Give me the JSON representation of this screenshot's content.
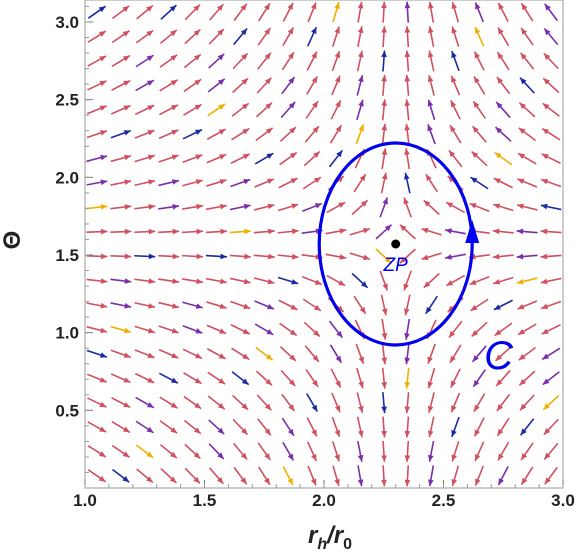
{
  "chart_data": {
    "type": "vector_field",
    "xlabel": "r",
    "xlabel_sub_h": "h",
    "xlabel_slash": "/r",
    "xlabel_sub_0": "0",
    "ylabel": "Θ",
    "xlim": [
      1.0,
      3.0
    ],
    "ylim": [
      0.0,
      3.1416
    ],
    "xticks": [
      "1.0",
      "1.5",
      "2.0",
      "2.5",
      "3.0"
    ],
    "yticks": [
      "0.5",
      "1.0",
      "1.5",
      "2.0",
      "2.5",
      "3.0"
    ],
    "zero_point": {
      "label": "ZP",
      "x": 2.3,
      "y": 1.5708
    },
    "contour": {
      "label": "C",
      "center_x": 2.3,
      "center_y": 1.5708,
      "radius_x": 0.32,
      "radius_y": 0.65,
      "direction": "counterclockwise"
    },
    "field": {
      "description_of_vectors": "normalized vectors pointing toward ZP along r and diverging vertically from Θ = π/2"
    },
    "colors": {
      "contour": "#0000ee",
      "zp_point": "#000000",
      "arrow_common": "#d05060",
      "arrow_purple": "#7a2ea8",
      "arrow_blue": "#1a2aa0",
      "arrow_yellow": "#f0b000"
    }
  }
}
